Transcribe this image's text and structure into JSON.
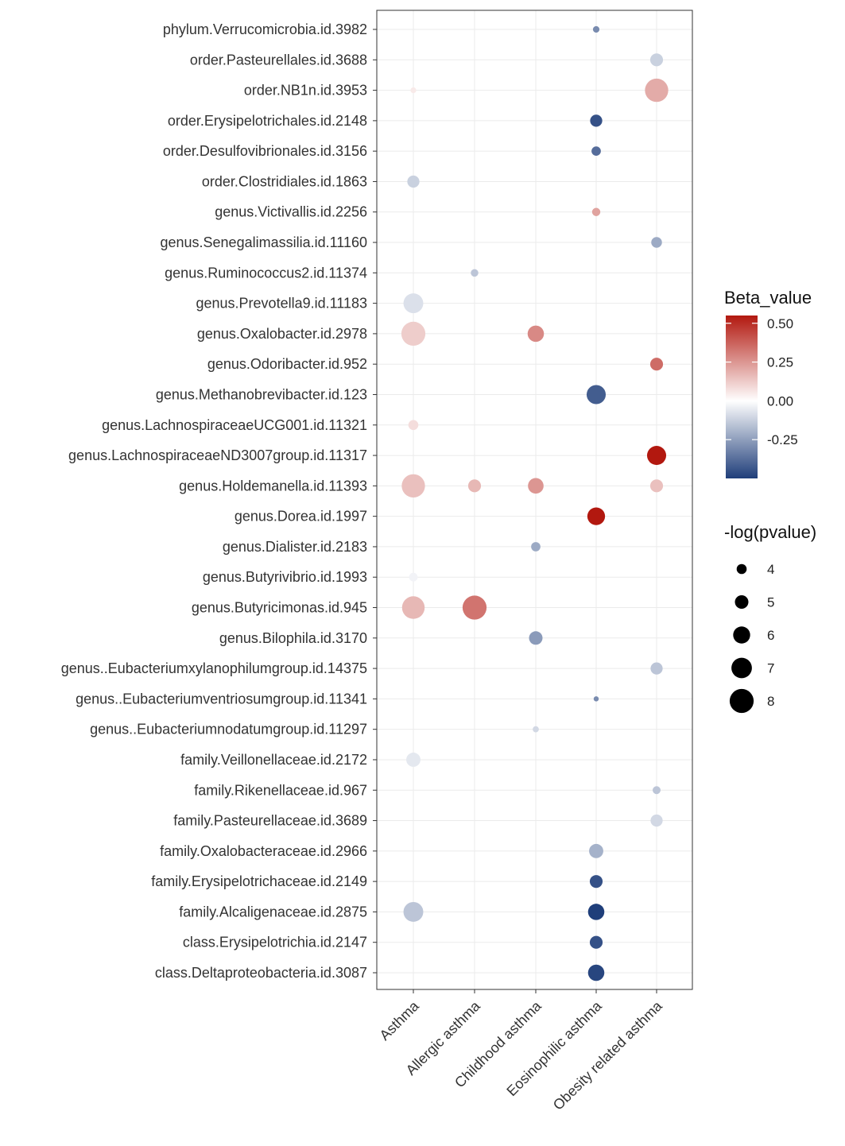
{
  "chart_data": {
    "type": "scatter",
    "subtype": "bubble",
    "categories_x": [
      "Asthma",
      "Allergic asthma",
      "Childhood asthma",
      "Eosinophilic asthma",
      "Obesity related asthma"
    ],
    "categories_y": [
      "phylum.Verrucomicrobia.id.3982",
      "order.Pasteurellales.id.3688",
      "order.NB1n.id.3953",
      "order.Erysipelotrichales.id.2148",
      "order.Desulfovibrionales.id.3156",
      "order.Clostridiales.id.1863",
      "genus.Victivallis.id.2256",
      "genus.Senegalimassilia.id.11160",
      "genus.Ruminococcus2.id.11374",
      "genus.Prevotella9.id.11183",
      "genus.Oxalobacter.id.2978",
      "genus.Odoribacter.id.952",
      "genus.Methanobrevibacter.id.123",
      "genus.LachnospiraceaeUCG001.id.11321",
      "genus.LachnospiraceaeND3007group.id.11317",
      "genus.Holdemanella.id.11393",
      "genus.Dorea.id.1997",
      "genus.Dialister.id.2183",
      "genus.Butyrivibrio.id.1993",
      "genus.Butyricimonas.id.945",
      "genus.Bilophila.id.3170",
      "genus..Eubacteriumxylanophilumgroup.id.14375",
      "genus..Eubacteriumventriosumgroup.id.11341",
      "genus..Eubacteriumnodatumgroup.id.11297",
      "family.Veillonellaceae.id.2172",
      "family.Rikenellaceae.id.967",
      "family.Pasteurellaceae.id.3689",
      "family.Oxalobacteraceae.id.2966",
      "family.Erysipelotrichaceae.id.2149",
      "family.Alcaligenaceae.id.2875",
      "class.Erysipelotrichia.id.2147",
      "class.Deltaproteobacteria.id.3087"
    ],
    "points": [
      {
        "taxon": "phylum.Verrucomicrobia.id.3982",
        "group": "Eosinophilic asthma",
        "beta": -0.3,
        "neglogp": 3.0
      },
      {
        "taxon": "order.Pasteurellales.id.3688",
        "group": "Obesity related asthma",
        "beta": -0.12,
        "neglogp": 4.8
      },
      {
        "taxon": "order.NB1n.id.3953",
        "group": "Asthma",
        "beta": 0.05,
        "neglogp": 2.8
      },
      {
        "taxon": "order.NB1n.id.3953",
        "group": "Obesity related asthma",
        "beta": 0.2,
        "neglogp": 7.8
      },
      {
        "taxon": "order.Erysipelotrichales.id.2148",
        "group": "Eosinophilic asthma",
        "beta": -0.45,
        "neglogp": 4.6
      },
      {
        "taxon": "order.Desulfovibrionales.id.3156",
        "group": "Eosinophilic asthma",
        "beta": -0.38,
        "neglogp": 3.8
      },
      {
        "taxon": "order.Clostridiales.id.1863",
        "group": "Asthma",
        "beta": -0.12,
        "neglogp": 4.6
      },
      {
        "taxon": "genus.Victivallis.id.2256",
        "group": "Eosinophilic asthma",
        "beta": 0.22,
        "neglogp": 3.5
      },
      {
        "taxon": "genus.Senegalimassilia.id.11160",
        "group": "Obesity related asthma",
        "beta": -0.22,
        "neglogp": 4.2
      },
      {
        "taxon": "genus.Ruminococcus2.id.11374",
        "group": "Allergic asthma",
        "beta": -0.15,
        "neglogp": 3.3
      },
      {
        "taxon": "genus.Prevotella9.id.11183",
        "group": "Asthma",
        "beta": -0.08,
        "neglogp": 6.8
      },
      {
        "taxon": "genus.Oxalobacter.id.2978",
        "group": "Asthma",
        "beta": 0.12,
        "neglogp": 8.0
      },
      {
        "taxon": "genus.Oxalobacter.id.2978",
        "group": "Childhood asthma",
        "beta": 0.28,
        "neglogp": 5.8
      },
      {
        "taxon": "genus.Odoribacter.id.952",
        "group": "Obesity related asthma",
        "beta": 0.35,
        "neglogp": 4.8
      },
      {
        "taxon": "genus.Methanobrevibacter.id.123",
        "group": "Eosinophilic asthma",
        "beta": -0.42,
        "neglogp": 6.6
      },
      {
        "taxon": "genus.LachnospiraceaeUCG001.id.11321",
        "group": "Asthma",
        "beta": 0.08,
        "neglogp": 4.0
      },
      {
        "taxon": "genus.LachnospiraceaeND3007group.id.11317",
        "group": "Obesity related asthma",
        "beta": 0.55,
        "neglogp": 6.6
      },
      {
        "taxon": "genus.Holdemanella.id.11393",
        "group": "Asthma",
        "beta": 0.15,
        "neglogp": 7.8
      },
      {
        "taxon": "genus.Holdemanella.id.11393",
        "group": "Allergic asthma",
        "beta": 0.17,
        "neglogp": 4.8
      },
      {
        "taxon": "genus.Holdemanella.id.11393",
        "group": "Childhood asthma",
        "beta": 0.25,
        "neglogp": 5.6
      },
      {
        "taxon": "genus.Holdemanella.id.11393",
        "group": "Obesity related asthma",
        "beta": 0.15,
        "neglogp": 4.8
      },
      {
        "taxon": "genus.Dorea.id.1997",
        "group": "Eosinophilic asthma",
        "beta": 0.58,
        "neglogp": 6.2
      },
      {
        "taxon": "genus.Dialister.id.2183",
        "group": "Childhood asthma",
        "beta": -0.22,
        "neglogp": 3.8
      },
      {
        "taxon": "genus.Butyrivibrio.id.1993",
        "group": "Asthma",
        "beta": -0.03,
        "neglogp": 3.6
      },
      {
        "taxon": "genus.Butyricimonas.id.945",
        "group": "Asthma",
        "beta": 0.17,
        "neglogp": 7.6
      },
      {
        "taxon": "genus.Butyricimonas.id.945",
        "group": "Allergic asthma",
        "beta": 0.33,
        "neglogp": 8.0
      },
      {
        "taxon": "genus.Bilophila.id.3170",
        "group": "Childhood asthma",
        "beta": -0.26,
        "neglogp": 5.0
      },
      {
        "taxon": "genus..Eubacteriumxylanophilumgroup.id.14375",
        "group": "Obesity related asthma",
        "beta": -0.15,
        "neglogp": 4.6
      },
      {
        "taxon": "genus..Eubacteriumventriosumgroup.id.11341",
        "group": "Eosinophilic asthma",
        "beta": -0.3,
        "neglogp": 2.6
      },
      {
        "taxon": "genus..Eubacteriumnodatumgroup.id.11297",
        "group": "Childhood asthma",
        "beta": -0.1,
        "neglogp": 2.9
      },
      {
        "taxon": "family.Veillonellaceae.id.2172",
        "group": "Asthma",
        "beta": -0.06,
        "neglogp": 5.2
      },
      {
        "taxon": "family.Rikenellaceae.id.967",
        "group": "Obesity related asthma",
        "beta": -0.15,
        "neglogp": 3.4
      },
      {
        "taxon": "family.Pasteurellaceae.id.3689",
        "group": "Obesity related asthma",
        "beta": -0.1,
        "neglogp": 4.6
      },
      {
        "taxon": "family.Oxalobacteraceae.id.2966",
        "group": "Eosinophilic asthma",
        "beta": -0.2,
        "neglogp": 5.2
      },
      {
        "taxon": "family.Erysipelotrichaceae.id.2149",
        "group": "Eosinophilic asthma",
        "beta": -0.45,
        "neglogp": 4.8
      },
      {
        "taxon": "family.Alcaligenaceae.id.2875",
        "group": "Asthma",
        "beta": -0.15,
        "neglogp": 6.8
      },
      {
        "taxon": "family.Alcaligenaceae.id.2875",
        "group": "Eosinophilic asthma",
        "beta": -0.52,
        "neglogp": 5.8
      },
      {
        "taxon": "class.Erysipelotrichia.id.2147",
        "group": "Eosinophilic asthma",
        "beta": -0.45,
        "neglogp": 4.8
      },
      {
        "taxon": "class.Deltaproteobacteria.id.3087",
        "group": "Eosinophilic asthma",
        "beta": -0.48,
        "neglogp": 5.8
      }
    ],
    "color_legend": {
      "title": "Beta_value",
      "range": [
        -0.5,
        0.55
      ],
      "ticks": [
        0.5,
        0.25,
        0.0,
        -0.25
      ],
      "tick_labels": [
        "0.50",
        "0.25",
        "0.00",
        "-0.25"
      ],
      "low_color": "#1f3e7a",
      "mid_color": "#ffffff",
      "high_color": "#b2180f"
    },
    "size_legend": {
      "title": "-log(pvalue)",
      "values": [
        4,
        5,
        6,
        7,
        8
      ],
      "labels": [
        "4",
        "5",
        "6",
        "7",
        "8"
      ]
    },
    "xlabel": "",
    "ylabel": "",
    "grid": true
  }
}
